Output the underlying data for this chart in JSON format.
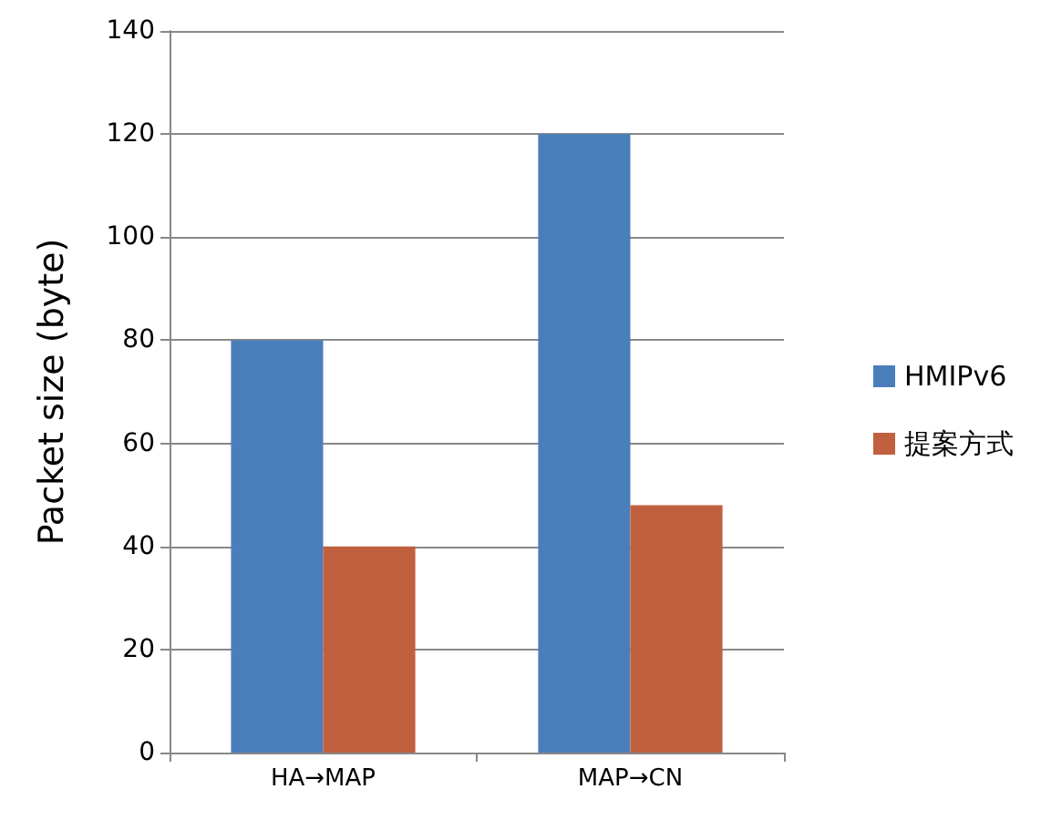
{
  "chart_data": {
    "type": "bar",
    "ylabel": "Packet size (byte)",
    "categories": [
      "HA→MAP",
      "MAP→CN"
    ],
    "series": [
      {
        "name": "HMIPv6",
        "color": "#4a7ebb",
        "values": [
          80,
          120
        ]
      },
      {
        "name": "提案方式",
        "color": "#c0603f",
        "values": [
          40,
          48
        ]
      }
    ],
    "ylim": [
      0,
      140
    ],
    "yticks": [
      0,
      20,
      40,
      60,
      80,
      100,
      120,
      140
    ],
    "grid": "y",
    "legend": "right"
  }
}
